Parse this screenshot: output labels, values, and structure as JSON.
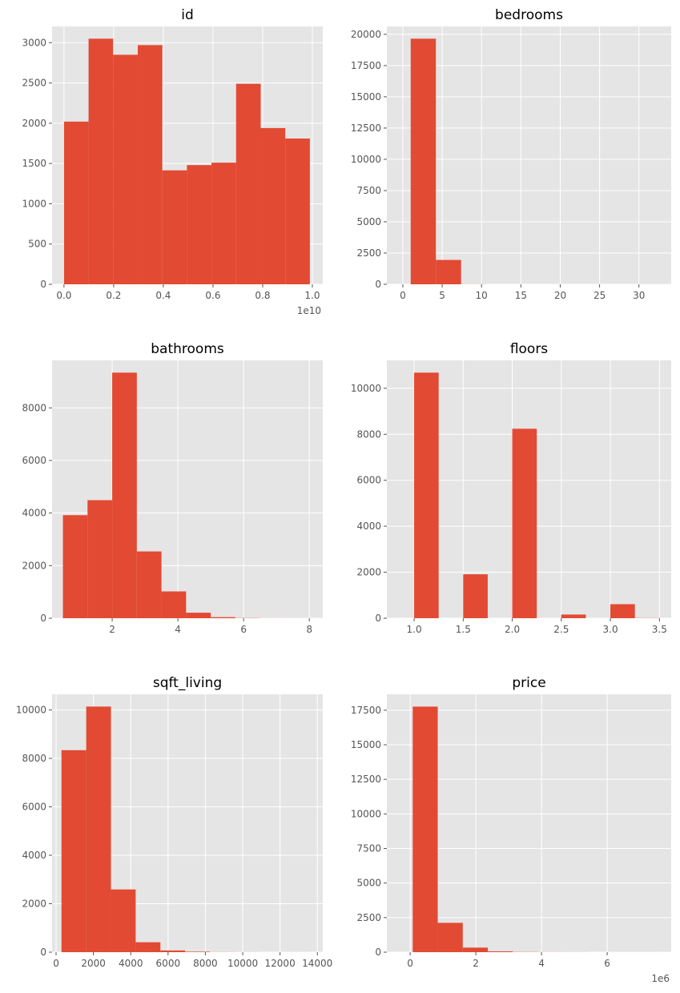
{
  "chart_data": [
    {
      "type": "histogram",
      "title": "id",
      "color": "#e24a33",
      "grid": true,
      "bins": [
        0.0,
        0.099,
        0.198,
        0.297,
        0.396,
        0.495,
        0.594,
        0.693,
        0.792,
        0.891,
        0.99
      ],
      "values": [
        2020,
        3050,
        2850,
        2970,
        1415,
        1480,
        1510,
        2490,
        1940,
        1810
      ],
      "xlim": [
        -0.048,
        1.042
      ],
      "ylim": [
        0,
        3202
      ],
      "xticks": [
        {
          "value": 0,
          "label": "0.0"
        },
        {
          "value": 0.2,
          "label": "0.2"
        },
        {
          "value": 0.4,
          "label": "0.4"
        },
        {
          "value": 0.6,
          "label": "0.6"
        },
        {
          "value": 0.8,
          "label": "0.8"
        },
        {
          "value": 1,
          "label": "1.0"
        }
      ],
      "yticks": [
        0,
        500,
        1000,
        1500,
        2000,
        2500,
        3000
      ],
      "x_offset_label": "1e10"
    },
    {
      "type": "histogram",
      "title": "bedrooms",
      "color": "#e24a33",
      "grid": true,
      "bins": [
        1,
        4.2,
        7.4,
        10.6,
        13.8,
        17,
        20.2,
        23.4,
        26.6,
        29.8,
        33
      ],
      "values": [
        19650,
        1950,
        8,
        0,
        0,
        0,
        0,
        0,
        0,
        1
      ],
      "xlim": [
        -2.03,
        34.1
      ],
      "ylim": [
        0,
        20632
      ],
      "xticks": [
        0,
        5,
        10,
        15,
        20,
        25,
        30
      ],
      "yticks": [
        0,
        2500,
        5000,
        7500,
        10000,
        12500,
        15000,
        17500,
        20000
      ]
    },
    {
      "type": "histogram",
      "title": "bathrooms",
      "color": "#e24a33",
      "grid": true,
      "bins": [
        0.5,
        1.25,
        2,
        2.75,
        3.5,
        4.25,
        5,
        5.75,
        6.5,
        7.25,
        8
      ],
      "values": [
        3920,
        4490,
        9340,
        2540,
        1020,
        210,
        40,
        8,
        2,
        1
      ],
      "xlim": [
        0.17,
        8.41
      ],
      "ylim": [
        0,
        9807
      ],
      "xticks": [
        2,
        4,
        6,
        8
      ],
      "yticks": [
        0,
        2000,
        4000,
        6000,
        8000
      ]
    },
    {
      "type": "histogram",
      "title": "floors",
      "color": "#e24a33",
      "grid": true,
      "bins": [
        1,
        1.25,
        1.5,
        1.75,
        2,
        2.25,
        2.5,
        2.75,
        3,
        3.25,
        3.5
      ],
      "values": [
        10680,
        0,
        1910,
        0,
        8240,
        0,
        160,
        0,
        610,
        8
      ],
      "xlim": [
        0.722,
        3.62
      ],
      "ylim": [
        0,
        11214
      ],
      "xticks": [
        {
          "value": 1,
          "label": "1.0"
        },
        1.5,
        {
          "value": 2,
          "label": "2.0"
        },
        2.5,
        {
          "value": 3,
          "label": "3.0"
        },
        3.5
      ],
      "yticks": [
        0,
        2000,
        4000,
        6000,
        8000,
        10000
      ]
    },
    {
      "type": "histogram",
      "title": "sqft_living",
      "color": "#e24a33",
      "grid": true,
      "bins": [
        290,
        1615,
        2940,
        4265,
        5590,
        6915,
        8240,
        9565,
        10890,
        12215,
        13540
      ],
      "values": [
        8340,
        10140,
        2590,
        410,
        70,
        20,
        4,
        2,
        0,
        1
      ],
      "xlim": [
        -215,
        14290
      ],
      "ylim": [
        0,
        10647
      ],
      "xticks": [
        0,
        2000,
        4000,
        6000,
        8000,
        10000,
        12000,
        14000
      ],
      "yticks": [
        0,
        2000,
        4000,
        6000,
        8000,
        10000
      ]
    },
    {
      "type": "histogram",
      "title": "price",
      "color": "#e24a33",
      "grid": true,
      "bins": [
        0.078,
        0.84,
        1.602,
        2.364,
        3.126,
        3.888,
        4.65,
        5.412,
        6.174,
        6.936,
        7.698
      ],
      "values": [
        17760,
        2120,
        330,
        60,
        15,
        6,
        3,
        0,
        1,
        1
      ],
      "xlim": [
        -0.71,
        7.95
      ],
      "ylim": [
        0,
        18650
      ],
      "xticks": [
        0,
        2,
        4,
        6
      ],
      "yticks": [
        0,
        2500,
        5000,
        7500,
        10000,
        12500,
        15000,
        17500
      ],
      "x_offset_label": "1e6"
    }
  ]
}
